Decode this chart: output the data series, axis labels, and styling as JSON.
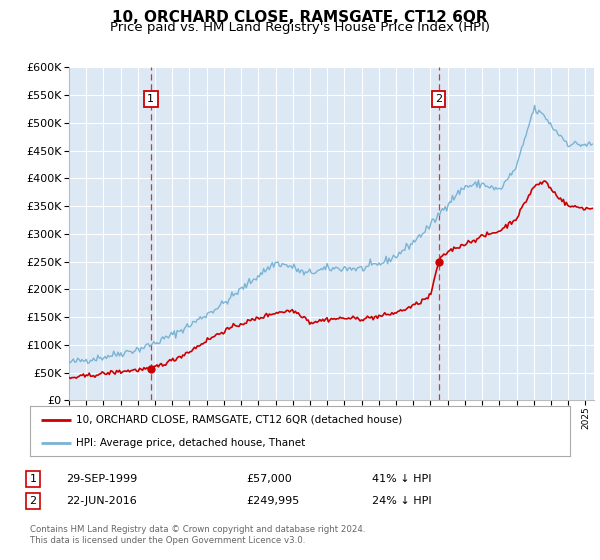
{
  "title": "10, ORCHARD CLOSE, RAMSGATE, CT12 6QR",
  "subtitle": "Price paid vs. HM Land Registry's House Price Index (HPI)",
  "title_fontsize": 11,
  "subtitle_fontsize": 9.5,
  "plot_bg_color": "#dce9f5",
  "fig_bg_color": "#ffffff",
  "grid_color": "#ffffff",
  "hpi_line_color": "#7ab3d4",
  "price_line_color": "#cc0000",
  "marker_color": "#cc0000",
  "dashed_line_color": "#dd3333",
  "ylim": [
    0,
    600000
  ],
  "ytick_step": 50000,
  "purchase1_price": 57000,
  "purchase1_year": 1999.75,
  "purchase2_price": 249995,
  "purchase2_year": 2016.47,
  "legend_label1": "10, ORCHARD CLOSE, RAMSGATE, CT12 6QR (detached house)",
  "legend_label2": "HPI: Average price, detached house, Thanet",
  "table_row1": [
    "1",
    "29-SEP-1999",
    "£57,000",
    "41% ↓ HPI"
  ],
  "table_row2": [
    "2",
    "22-JUN-2016",
    "£249,995",
    "24% ↓ HPI"
  ],
  "footer": "Contains HM Land Registry data © Crown copyright and database right 2024.\nThis data is licensed under the Open Government Licence v3.0.",
  "xmin": 1995.0,
  "xmax": 2025.5
}
